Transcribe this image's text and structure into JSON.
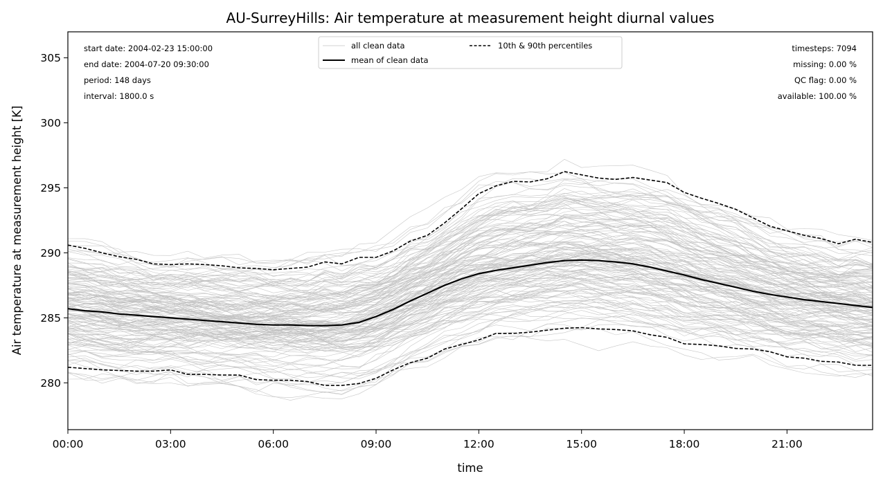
{
  "chart_data": {
    "type": "line",
    "title": "AU-SurreyHills: Air temperature at measurement height diurnal values",
    "xlabel": "time",
    "ylabel": "Air temperature at measurement height [K]",
    "xlim_hours": [
      0,
      23.5
    ],
    "ylim": [
      276.4,
      307.0
    ],
    "x_ticks": [
      {
        "value": 0,
        "label": "00:00"
      },
      {
        "value": 3,
        "label": "03:00"
      },
      {
        "value": 6,
        "label": "06:00"
      },
      {
        "value": 9,
        "label": "09:00"
      },
      {
        "value": 12,
        "label": "12:00"
      },
      {
        "value": 15,
        "label": "15:00"
      },
      {
        "value": 18,
        "label": "18:00"
      },
      {
        "value": 21,
        "label": "21:00"
      }
    ],
    "y_ticks": [
      280,
      285,
      290,
      295,
      300,
      305
    ],
    "grid": false,
    "legend": {
      "placement": "top-center",
      "entries": [
        {
          "label": "all clean data",
          "style": "thin-gray"
        },
        {
          "label": "mean of clean data",
          "style": "solid-black"
        },
        {
          "label": "10th & 90th percentiles",
          "style": "dashed-black"
        }
      ]
    },
    "stats_left": [
      "start date: 2004-02-23 15:00:00",
      "end date: 2004-07-20 09:30:00",
      "period: 148 days",
      "interval: 1800.0 s"
    ],
    "stats_right": [
      "timesteps: 7094",
      "missing: 0.00 %",
      "QC flag: 0.00 %",
      "available: 100.00 %"
    ],
    "x_hours": [
      0,
      0.5,
      1,
      1.5,
      2,
      2.5,
      3,
      3.5,
      4,
      4.5,
      5,
      5.5,
      6,
      6.5,
      7,
      7.5,
      8,
      8.5,
      9,
      9.5,
      10,
      10.5,
      11,
      11.5,
      12,
      12.5,
      13,
      13.5,
      14,
      14.5,
      15,
      15.5,
      16,
      16.5,
      17,
      17.5,
      18,
      18.5,
      19,
      19.5,
      20,
      20.5,
      21,
      21.5,
      22,
      22.5,
      23,
      23.5
    ],
    "series": [
      {
        "name": "mean of clean data",
        "values": [
          285.7,
          285.55,
          285.45,
          285.3,
          285.2,
          285.1,
          285.0,
          284.9,
          284.8,
          284.7,
          284.6,
          284.5,
          284.45,
          284.45,
          284.4,
          284.4,
          284.45,
          284.65,
          285.1,
          285.65,
          286.3,
          286.9,
          287.5,
          288.0,
          288.4,
          288.65,
          288.85,
          289.05,
          289.25,
          289.4,
          289.45,
          289.4,
          289.3,
          289.15,
          288.9,
          288.6,
          288.3,
          287.95,
          287.65,
          287.35,
          287.05,
          286.8,
          286.6,
          286.4,
          286.25,
          286.1,
          285.95,
          285.8
        ]
      },
      {
        "name": "10th percentile",
        "values": [
          281.2,
          281.1,
          281.0,
          280.95,
          280.9,
          280.9,
          281.0,
          280.65,
          280.65,
          280.6,
          280.6,
          280.25,
          280.2,
          280.2,
          280.1,
          279.8,
          279.8,
          279.95,
          280.35,
          281.0,
          281.55,
          281.9,
          282.6,
          282.95,
          283.3,
          283.8,
          283.8,
          283.9,
          284.05,
          284.2,
          284.25,
          284.15,
          284.1,
          284.0,
          283.7,
          283.5,
          283.0,
          282.95,
          282.85,
          282.65,
          282.6,
          282.4,
          282.0,
          281.9,
          281.65,
          281.6,
          281.35,
          281.35
        ]
      },
      {
        "name": "90th percentile",
        "values": [
          290.6,
          290.35,
          290.0,
          289.7,
          289.5,
          289.15,
          289.1,
          289.15,
          289.1,
          289.0,
          288.85,
          288.8,
          288.7,
          288.8,
          288.9,
          289.3,
          289.15,
          289.65,
          289.65,
          290.15,
          290.9,
          291.35,
          292.3,
          293.4,
          294.55,
          295.15,
          295.5,
          295.45,
          295.7,
          296.25,
          296.0,
          295.75,
          295.65,
          295.8,
          295.6,
          295.4,
          294.65,
          294.2,
          293.8,
          293.35,
          292.7,
          292.05,
          291.7,
          291.35,
          291.1,
          290.7,
          291.05,
          290.8
        ]
      }
    ],
    "colors": {
      "all_clean_data": "#c0c0c0",
      "mean": "#000000",
      "percentiles": "#000000"
    }
  }
}
